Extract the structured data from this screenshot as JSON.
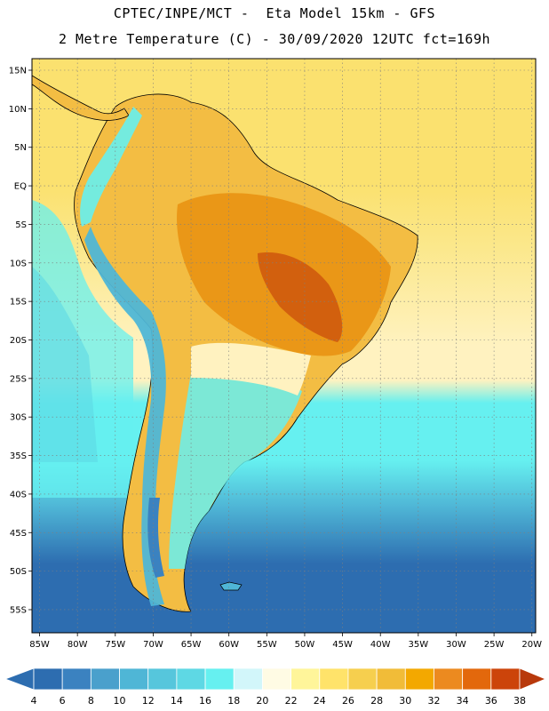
{
  "title": {
    "line1": "CPTEC/INPE/MCT -  Eta Model 15km - GFS",
    "line2": "2 Metre Temperature (C) - 30/09/2020 12UTC fct=169h"
  },
  "map": {
    "variable": "2 Metre Temperature",
    "units": "C",
    "lon_range": [
      -86,
      -19.5
    ],
    "lat_range": [
      -58,
      16.5
    ],
    "lat_ticks": [
      {
        "value": 15,
        "label": "15N"
      },
      {
        "value": 10,
        "label": "10N"
      },
      {
        "value": 5,
        "label": "5N"
      },
      {
        "value": 0,
        "label": "EQ"
      },
      {
        "value": -5,
        "label": "5S"
      },
      {
        "value": -10,
        "label": "10S"
      },
      {
        "value": -15,
        "label": "15S"
      },
      {
        "value": -20,
        "label": "20S"
      },
      {
        "value": -25,
        "label": "25S"
      },
      {
        "value": -30,
        "label": "30S"
      },
      {
        "value": -35,
        "label": "35S"
      },
      {
        "value": -40,
        "label": "40S"
      },
      {
        "value": -45,
        "label": "45S"
      },
      {
        "value": -50,
        "label": "50S"
      },
      {
        "value": -55,
        "label": "55S"
      }
    ],
    "lon_ticks": [
      {
        "value": -85,
        "label": "85W"
      },
      {
        "value": -80,
        "label": "80W"
      },
      {
        "value": -75,
        "label": "75W"
      },
      {
        "value": -70,
        "label": "70W"
      },
      {
        "value": -65,
        "label": "65W"
      },
      {
        "value": -60,
        "label": "60W"
      },
      {
        "value": -55,
        "label": "55W"
      },
      {
        "value": -50,
        "label": "50W"
      },
      {
        "value": -45,
        "label": "45W"
      },
      {
        "value": -40,
        "label": "40W"
      },
      {
        "value": -35,
        "label": "35W"
      },
      {
        "value": -30,
        "label": "30W"
      },
      {
        "value": -25,
        "label": "25W"
      },
      {
        "value": -20,
        "label": "20W"
      }
    ],
    "grid": "dotted"
  },
  "colorbar": {
    "labels": [
      "4",
      "6",
      "8",
      "10",
      "12",
      "14",
      "16",
      "18",
      "20",
      "22",
      "24",
      "26",
      "28",
      "30",
      "32",
      "34",
      "36",
      "38"
    ],
    "colors": [
      "#2d6db0",
      "#3b82c0",
      "#4aa0cc",
      "#4fb6d6",
      "#56c6dc",
      "#5ed8e4",
      "#66f0f0",
      "#d2f6fa",
      "#fffbe4",
      "#fff59a",
      "#ffe36a",
      "#f6cf4e",
      "#f1bc38",
      "#f3a800",
      "#ec8a1f",
      "#e3680c",
      "#cc440a"
    ],
    "left_arrow_color": "#2d6db0",
    "right_arrow_color": "#b8390c"
  },
  "colors": {
    "ocean_north": "#fbe16f",
    "ocean_equator": "#fbe88c",
    "ocean_pale": "#fff2c0",
    "ocean_cyan": "#66f0f0",
    "ocean_mid": "#4fb6d6",
    "ocean_deep": "#2d6db0",
    "land_warm": "#f3bd43",
    "land_hot": "#e8900f",
    "land_hottest": "#cf5a0d",
    "andes_cold": "#3b82c0",
    "border": "#000000"
  }
}
